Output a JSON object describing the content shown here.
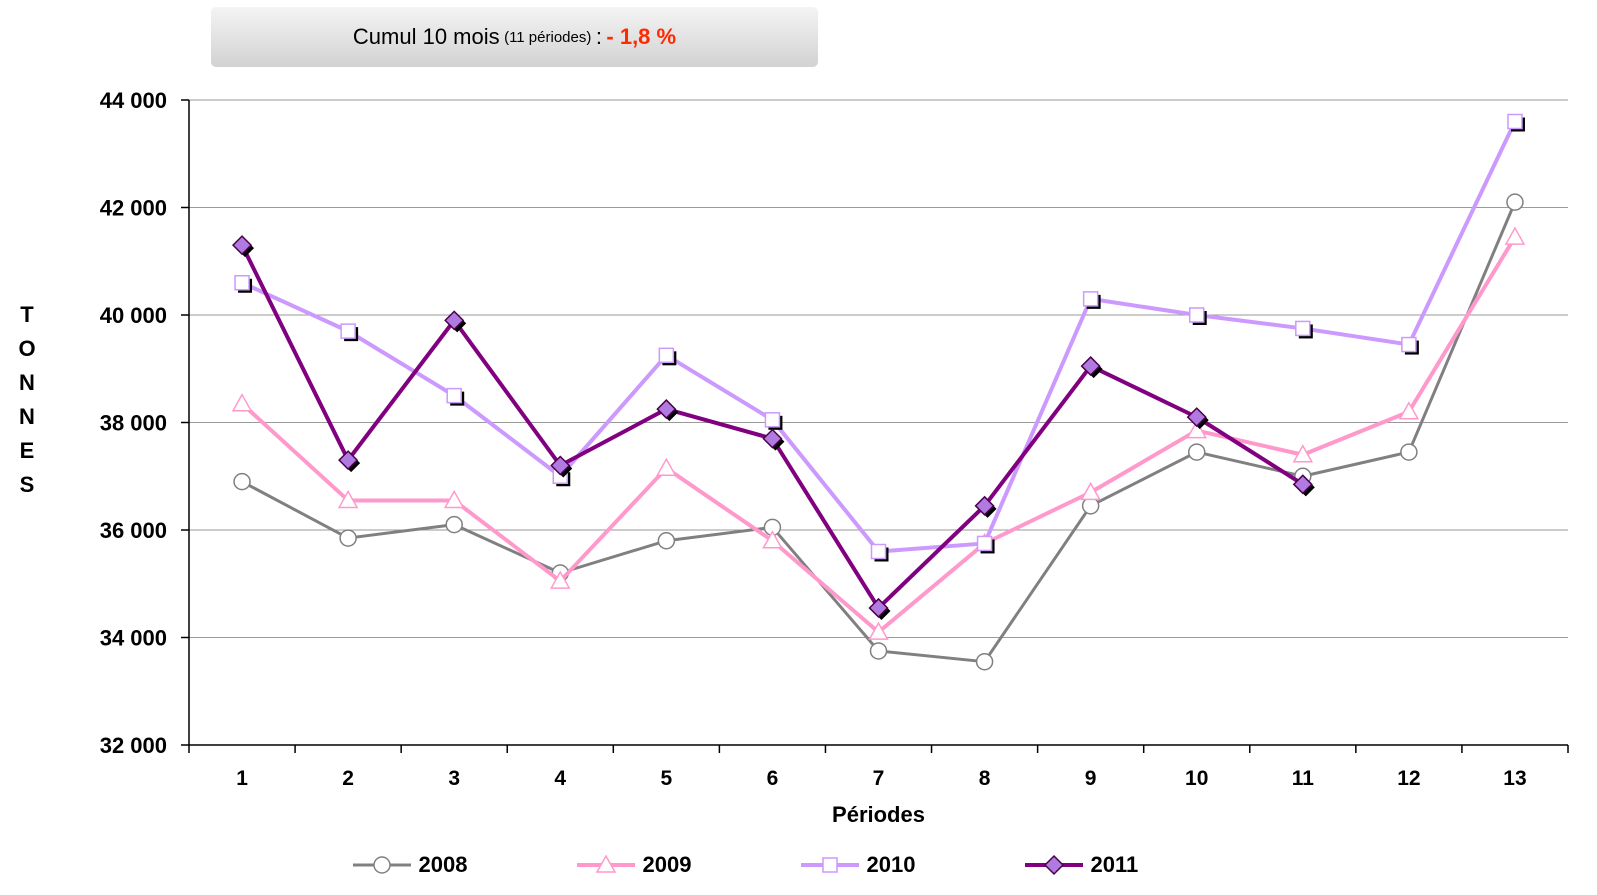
{
  "summary": {
    "main_label": "Cumul 10 mois",
    "sub_label": "(11 périodes)",
    "separator": ":",
    "value": "- 1,8 %"
  },
  "chart_data": {
    "type": "line",
    "xlabel": "Périodes",
    "ylabel": "TONNES",
    "ylim": [
      32000,
      44000
    ],
    "yticks": [
      32000,
      34000,
      36000,
      38000,
      40000,
      42000,
      44000
    ],
    "ytick_labels": [
      "32 000",
      "34 000",
      "36 000",
      "38 000",
      "40 000",
      "42 000",
      "44 000"
    ],
    "categories": [
      "1",
      "2",
      "3",
      "4",
      "5",
      "6",
      "7",
      "8",
      "9",
      "10",
      "11",
      "12",
      "13"
    ],
    "grid": "horizontal",
    "legend_position": "bottom",
    "series": [
      {
        "name": "2008",
        "color": "#808080",
        "marker": "circle",
        "values": [
          36900,
          35850,
          36100,
          35200,
          35800,
          36050,
          33750,
          33550,
          36450,
          37450,
          37000,
          37450,
          42100
        ]
      },
      {
        "name": "2009",
        "color": "#ff99cc",
        "marker": "triangle",
        "values": [
          38350,
          36550,
          36550,
          35050,
          37150,
          35800,
          34100,
          35750,
          36700,
          37850,
          37400,
          38200,
          41450
        ]
      },
      {
        "name": "2010",
        "color": "#cc99ff",
        "marker": "square",
        "values": [
          40600,
          39700,
          38500,
          37000,
          39250,
          38050,
          35600,
          35750,
          40300,
          40000,
          39750,
          39450,
          43600
        ]
      },
      {
        "name": "2011",
        "color": "#800080",
        "marker": "diamond",
        "values": [
          41300,
          37300,
          39900,
          37200,
          38250,
          37700,
          34550,
          36450,
          39050,
          38100,
          36850,
          null,
          null
        ]
      }
    ]
  }
}
